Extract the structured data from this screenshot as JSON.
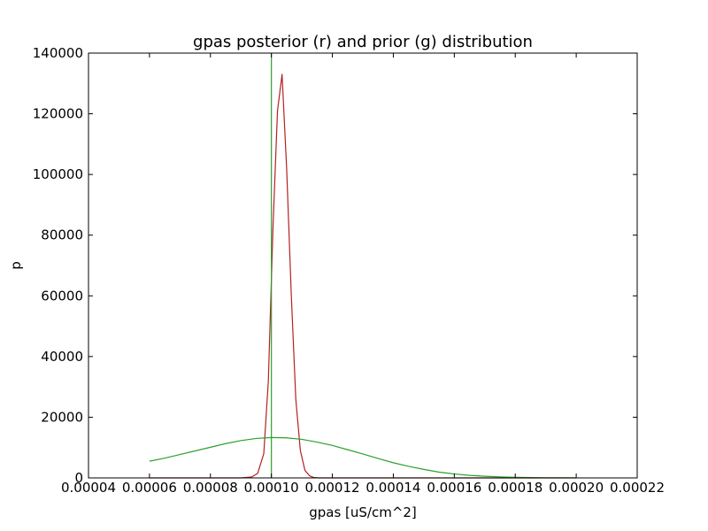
{
  "chart_data": {
    "type": "line",
    "title": "gpas posterior (r) and prior (g) distribution",
    "xlabel": "gpas [uS/cm^2]",
    "ylabel": "p",
    "xlim": [
      4e-05,
      0.00022
    ],
    "ylim": [
      0,
      140000
    ],
    "xticks": [
      {
        "value": 4e-05,
        "label": "0.00004"
      },
      {
        "value": 6e-05,
        "label": "0.00006"
      },
      {
        "value": 8e-05,
        "label": "0.00008"
      },
      {
        "value": 0.0001,
        "label": "0.00010"
      },
      {
        "value": 0.00012,
        "label": "0.00012"
      },
      {
        "value": 0.00014,
        "label": "0.00014"
      },
      {
        "value": 0.00016,
        "label": "0.00016"
      },
      {
        "value": 0.00018,
        "label": "0.00018"
      },
      {
        "value": 0.0002,
        "label": "0.00020"
      },
      {
        "value": 0.00022,
        "label": "0.00022"
      }
    ],
    "yticks": [
      {
        "value": 0,
        "label": "0"
      },
      {
        "value": 20000,
        "label": "20000"
      },
      {
        "value": 40000,
        "label": "40000"
      },
      {
        "value": 60000,
        "label": "60000"
      },
      {
        "value": 80000,
        "label": "80000"
      },
      {
        "value": 100000,
        "label": "100000"
      },
      {
        "value": 120000,
        "label": "120000"
      },
      {
        "value": 140000,
        "label": "140000"
      }
    ],
    "grid": false,
    "vline": {
      "x": 0.0001,
      "color": "#2ca02c"
    },
    "series": [
      {
        "color": "#b22222",
        "x": [
          6e-05,
          8e-05,
          9e-05,
          9.35e-05,
          9.55e-05,
          9.75e-05,
          9.9e-05,
          0.0001005,
          0.000102,
          0.0001035,
          0.000105,
          0.0001065,
          0.000108,
          0.0001095,
          0.000111,
          0.0001125,
          0.000114,
          0.000116,
          0.00012,
          0.00014,
          0.00016,
          0.00018,
          0.0002
        ],
        "values": [
          0,
          0,
          0,
          300,
          1500,
          8000,
          32000,
          82000,
          121000,
          133000,
          102000,
          61000,
          26000,
          9000,
          2500,
          700,
          100,
          0,
          0,
          0,
          0,
          0,
          0
        ]
      },
      {
        "color": "#2ca02c",
        "x": [
          6e-05,
          6.5e-05,
          7e-05,
          7.5e-05,
          8e-05,
          8.5e-05,
          9e-05,
          9.5e-05,
          0.0001,
          0.000105,
          0.00011,
          0.000115,
          0.00012,
          0.000125,
          0.00013,
          0.000135,
          0.00014,
          0.000145,
          0.00015,
          0.000155,
          0.00016,
          0.000165,
          0.00017,
          0.000175,
          0.00018,
          0.000185,
          0.00019,
          0.000195,
          0.0002
        ],
        "values": [
          5500,
          6500,
          7700,
          8900,
          10100,
          11300,
          12300,
          13000,
          13300,
          13200,
          12700,
          11800,
          10700,
          9300,
          7900,
          6400,
          5000,
          3800,
          2800,
          1900,
          1300,
          850,
          550,
          330,
          200,
          110,
          60,
          30,
          15
        ]
      }
    ]
  }
}
